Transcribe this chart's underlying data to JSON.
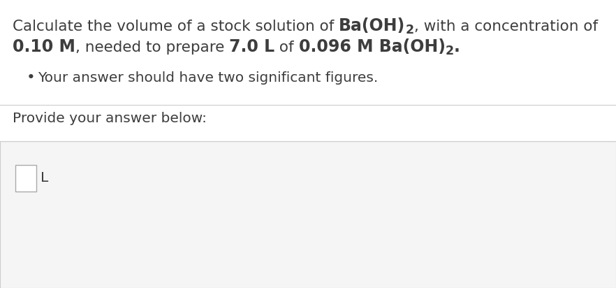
{
  "bg_color": "#ffffff",
  "text_color": "#3d3d3d",
  "separator_color": "#cccccc",
  "input_box_facecolor": "#ffffff",
  "input_border_color": "#aaaaaa",
  "answer_area_color": "#f5f5f5",
  "font_size_main": 15.5,
  "font_size_bullet": 14.5,
  "font_size_provide": 14.5,
  "font_size_unit": 14.5,
  "line1_plain": "Calculate the volume of a stock solution of ",
  "line1_bold": "Ba(OH)",
  "line1_sub": "2",
  "line1_end": ", with a concentration of",
  "line2_bold1": "0.10 M",
  "line2_mid1": ", needed to prepare ",
  "line2_bold2": "7.0 L",
  "line2_mid2": " of ",
  "line2_bold3": "0.096 M Ba(OH)",
  "line2_sub": "2",
  "line2_end": ".",
  "bullet_text": "Your answer should have two significant figures.",
  "provide_text": "Provide your answer below:",
  "unit_text": "L"
}
